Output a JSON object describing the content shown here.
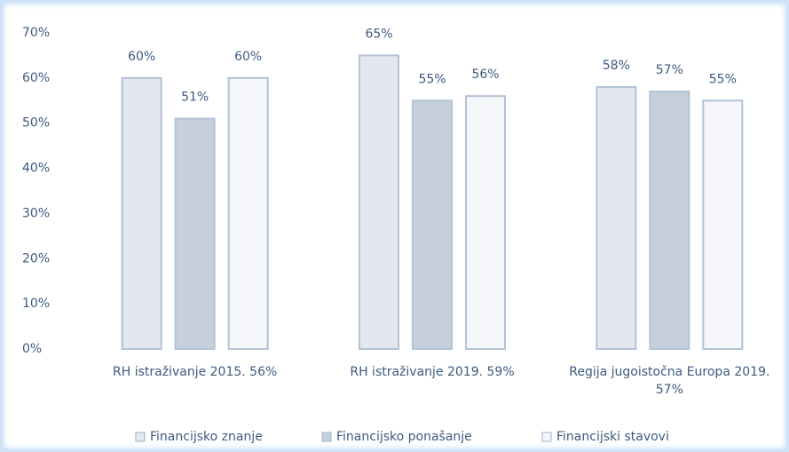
{
  "chart_data": {
    "type": "bar",
    "categories": [
      "RH istraživanje 2015. 56%",
      "RH istraživanje 2019. 59%",
      "Regija jugoistočna Europa 2019. 57%"
    ],
    "series": [
      {
        "name": "Financijsko znanje",
        "color": "#e3e8ef",
        "values": [
          60,
          65,
          58
        ],
        "value_labels": [
          "60%",
          "65%",
          "58%"
        ]
      },
      {
        "name": "Financijsko ponašanje",
        "color": "#c6d0dd",
        "values": [
          51,
          55,
          57
        ],
        "value_labels": [
          "51%",
          "55%",
          "57%"
        ]
      },
      {
        "name": "Financijski stavovi",
        "color": "#f5f7fa",
        "values": [
          60,
          56,
          55
        ],
        "value_labels": [
          "60%",
          "56%",
          "55%"
        ]
      }
    ],
    "ylim": [
      0,
      70
    ],
    "yticks": [
      {
        "value": 0,
        "label": "0%"
      },
      {
        "value": 10,
        "label": "10%"
      },
      {
        "value": 20,
        "label": "20%"
      },
      {
        "value": 30,
        "label": "30%"
      },
      {
        "value": 40,
        "label": "40%"
      },
      {
        "value": 50,
        "label": "50%"
      },
      {
        "value": 60,
        "label": "60%"
      },
      {
        "value": 70,
        "label": "70%"
      }
    ],
    "grid": false,
    "legend": "bottom"
  }
}
